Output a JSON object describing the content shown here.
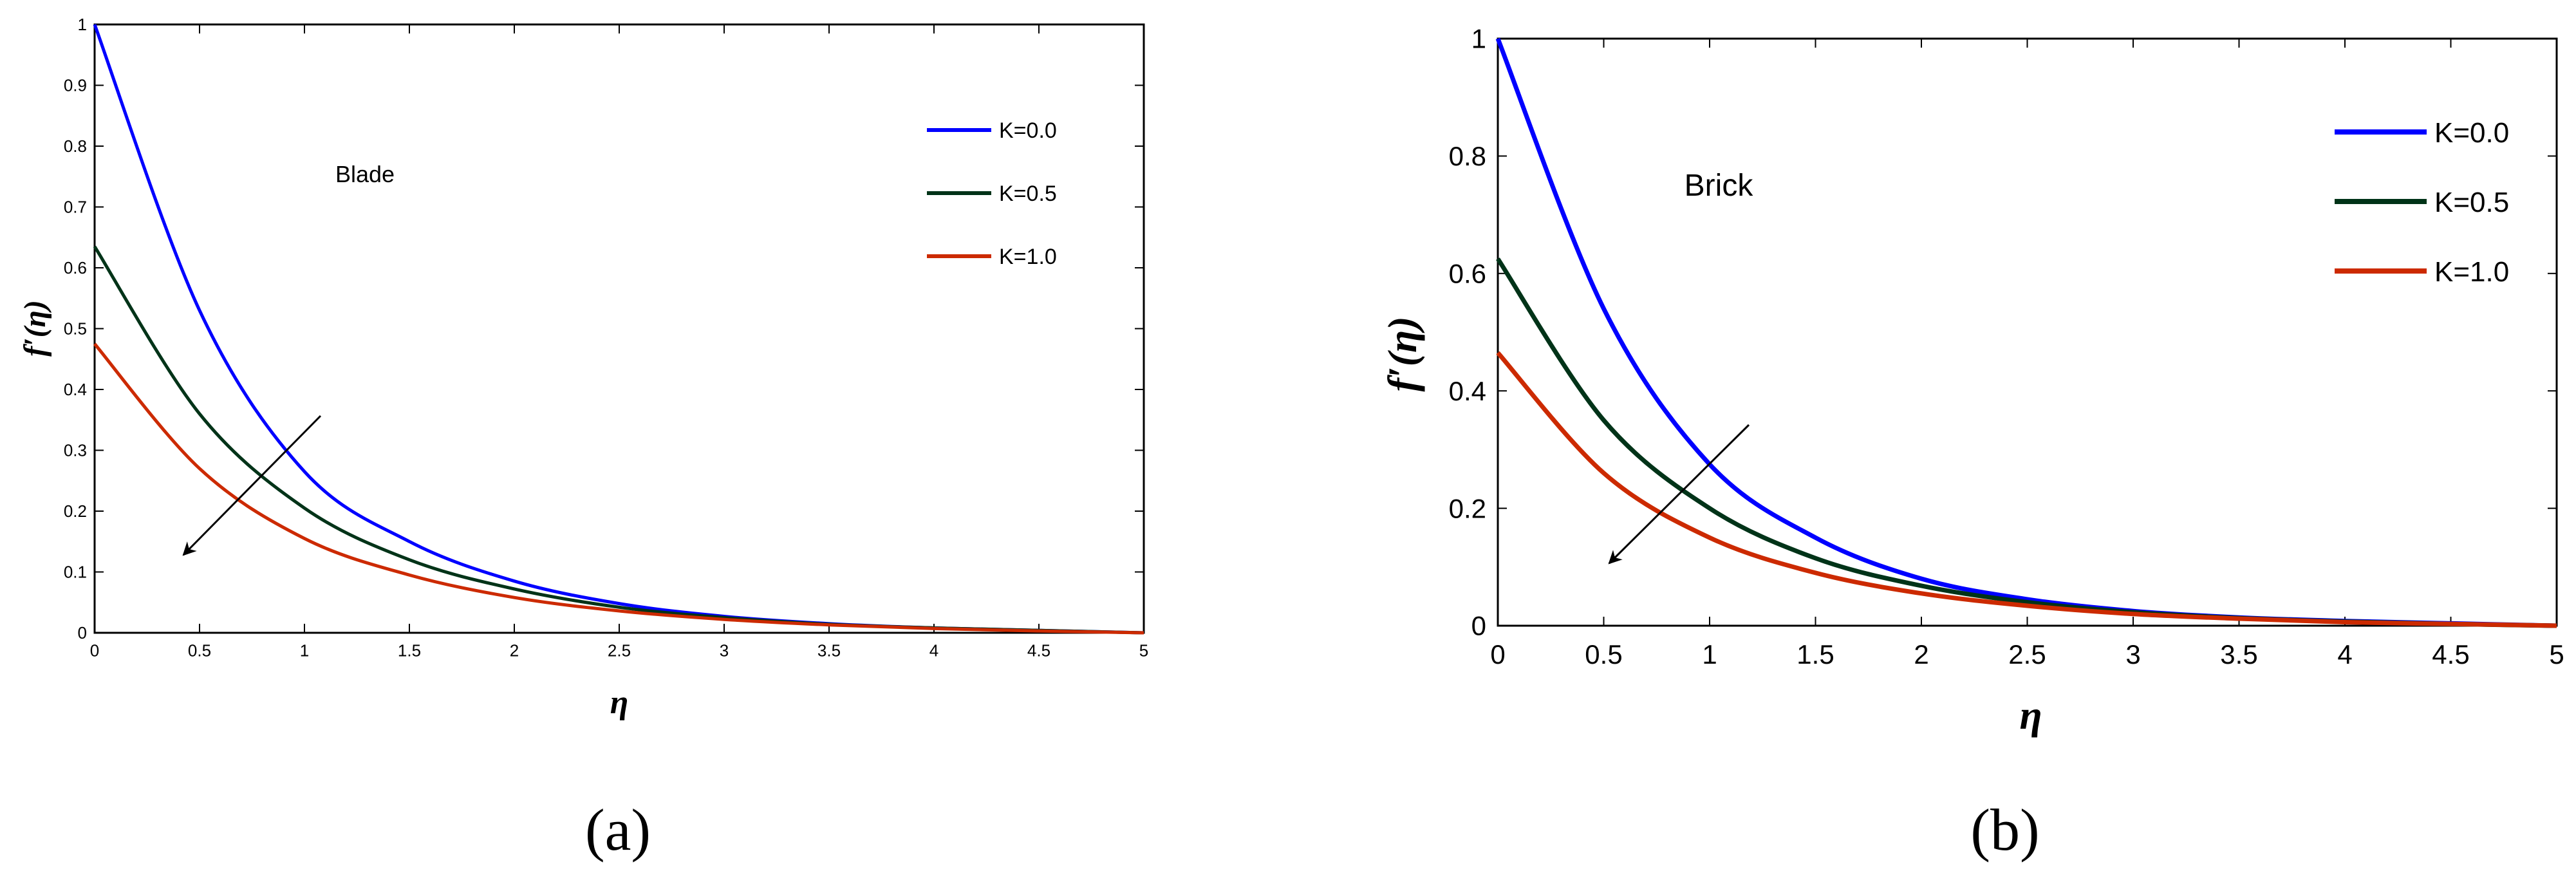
{
  "chart_data": [
    {
      "type": "line",
      "panel_label": "(a)",
      "annotation": "Blade",
      "xlabel": "η",
      "ylabel": "f′(η)",
      "xlim": [
        0,
        5
      ],
      "ylim": [
        0,
        1
      ],
      "xticks": [
        "0",
        "0.5",
        "1",
        "1.5",
        "2",
        "2.5",
        "3",
        "3.5",
        "4",
        "4.5",
        "5"
      ],
      "yticks": [
        "0",
        "0.1",
        "0.2",
        "0.3",
        "0.4",
        "0.5",
        "0.6",
        "0.7",
        "0.8",
        "0.9",
        "1"
      ],
      "legend_position": "top-right",
      "arrow_direction": "decreasing with increasing K",
      "series": [
        {
          "name": "K=0.0",
          "color": "#0000ff",
          "x": [
            0,
            0.5,
            1,
            1.5,
            2,
            2.5,
            3,
            3.5,
            4,
            4.5,
            5
          ],
          "y": [
            1.0,
            0.53,
            0.265,
            0.15,
            0.085,
            0.048,
            0.027,
            0.015,
            0.008,
            0.004,
            0.0
          ]
        },
        {
          "name": "K=0.5",
          "color": "#003318",
          "x": [
            0,
            0.5,
            1,
            1.5,
            2,
            2.5,
            3,
            3.5,
            4,
            4.5,
            5
          ],
          "y": [
            0.635,
            0.36,
            0.205,
            0.12,
            0.072,
            0.042,
            0.025,
            0.014,
            0.008,
            0.004,
            0.0
          ]
        },
        {
          "name": "K=1.0",
          "color": "#cc2a00",
          "x": [
            0,
            0.5,
            1,
            1.5,
            2,
            2.5,
            3,
            3.5,
            4,
            4.5,
            5
          ],
          "y": [
            0.475,
            0.27,
            0.155,
            0.095,
            0.058,
            0.036,
            0.022,
            0.013,
            0.007,
            0.003,
            0.0
          ]
        }
      ]
    },
    {
      "type": "line",
      "panel_label": "(b)",
      "annotation": "Brick",
      "xlabel": "η",
      "ylabel": "f′(η)",
      "xlim": [
        0,
        5
      ],
      "ylim": [
        0,
        1
      ],
      "xticks": [
        "0",
        "0.5",
        "1",
        "1.5",
        "2",
        "2.5",
        "3",
        "3.5",
        "4",
        "4.5",
        "5"
      ],
      "yticks": [
        "0",
        "0.2",
        "0.4",
        "0.6",
        "0.8",
        "1"
      ],
      "legend_position": "top-right",
      "arrow_direction": "decreasing with increasing K",
      "series": [
        {
          "name": "K=0.0",
          "color": "#0000ff",
          "x": [
            0,
            0.5,
            1,
            1.5,
            2,
            2.5,
            3,
            3.5,
            4,
            4.5,
            5
          ],
          "y": [
            1.0,
            0.54,
            0.275,
            0.15,
            0.08,
            0.045,
            0.025,
            0.014,
            0.008,
            0.004,
            0.0
          ]
        },
        {
          "name": "K=0.5",
          "color": "#003318",
          "x": [
            0,
            0.5,
            1,
            1.5,
            2,
            2.5,
            3,
            3.5,
            4,
            4.5,
            5
          ],
          "y": [
            0.625,
            0.35,
            0.2,
            0.115,
            0.068,
            0.04,
            0.023,
            0.013,
            0.007,
            0.003,
            0.0
          ]
        },
        {
          "name": "K=1.0",
          "color": "#cc2a00",
          "x": [
            0,
            0.5,
            1,
            1.5,
            2,
            2.5,
            3,
            3.5,
            4,
            4.5,
            5
          ],
          "y": [
            0.465,
            0.26,
            0.15,
            0.09,
            0.055,
            0.034,
            0.02,
            0.012,
            0.006,
            0.003,
            0.0
          ]
        }
      ]
    }
  ]
}
